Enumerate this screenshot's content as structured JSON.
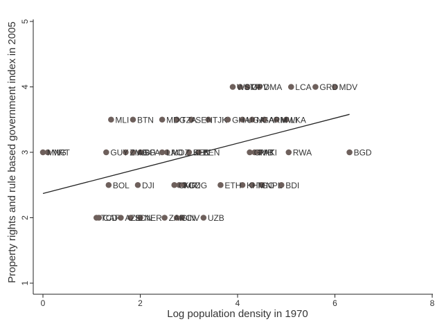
{
  "chart_data": {
    "type": "scatter",
    "xlabel": "Log population density in 1970",
    "ylabel": "Property rights and rule based government index in 2005",
    "xlim": [
      0,
      8
    ],
    "ylim": [
      1,
      5
    ],
    "xticks": [
      0,
      2,
      4,
      6,
      8
    ],
    "yticks": [
      1,
      2,
      3,
      4,
      5
    ],
    "marker_color": "#6e605c",
    "fit_line": {
      "x": [
        0,
        6.3
      ],
      "y": [
        2.37,
        3.58
      ]
    },
    "points": [
      {
        "label": "WSM",
        "x": 3.9,
        "y": 4.0
      },
      {
        "label": "STP",
        "x": 4.05,
        "y": 4.0
      },
      {
        "label": "CPV",
        "x": 4.2,
        "y": 4.0
      },
      {
        "label": "DMA",
        "x": 4.45,
        "y": 4.0
      },
      {
        "label": "LCA",
        "x": 5.1,
        "y": 4.0
      },
      {
        "label": "GRD",
        "x": 5.6,
        "y": 4.0
      },
      {
        "label": "MDV",
        "x": 6.0,
        "y": 4.0
      },
      {
        "label": "MLI",
        "x": 1.4,
        "y": 3.5
      },
      {
        "label": "BTN",
        "x": 1.85,
        "y": 3.5
      },
      {
        "label": "MDG",
        "x": 2.45,
        "y": 3.5
      },
      {
        "label": "TZA",
        "x": 2.75,
        "y": 3.5
      },
      {
        "label": "SEN",
        "x": 3.05,
        "y": 3.5
      },
      {
        "label": "TJK",
        "x": 3.4,
        "y": 3.5
      },
      {
        "label": "GHA",
        "x": 3.8,
        "y": 3.5
      },
      {
        "label": "UGA",
        "x": 4.1,
        "y": 3.5
      },
      {
        "label": "NGA",
        "x": 4.3,
        "y": 3.5
      },
      {
        "label": "ARM",
        "x": 4.55,
        "y": 3.5
      },
      {
        "label": "MWI",
        "x": 4.8,
        "y": 3.5
      },
      {
        "label": "LKA",
        "x": 5.0,
        "y": 3.5
      },
      {
        "label": "MNG",
        "x": 0.0,
        "y": 3.0
      },
      {
        "label": "MRT",
        "x": 0.1,
        "y": 3.0
      },
      {
        "label": "GUY",
        "x": 1.3,
        "y": 3.0
      },
      {
        "label": "ZMB",
        "x": 1.7,
        "y": 3.0
      },
      {
        "label": "AGO",
        "x": 1.85,
        "y": 3.0
      },
      {
        "label": "BFA",
        "x": 2.0,
        "y": 3.0
      },
      {
        "label": "LAO",
        "x": 2.45,
        "y": 3.0
      },
      {
        "label": "MOZ",
        "x": 2.55,
        "y": 3.0
      },
      {
        "label": "KEN",
        "x": 3.0,
        "y": 3.0
      },
      {
        "label": "BEN",
        "x": 3.2,
        "y": 3.0
      },
      {
        "label": "GMB",
        "x": 4.25,
        "y": 3.0
      },
      {
        "label": "PAK",
        "x": 4.35,
        "y": 3.0
      },
      {
        "label": "HTI",
        "x": 4.45,
        "y": 3.0
      },
      {
        "label": "RWA",
        "x": 5.05,
        "y": 3.0
      },
      {
        "label": "BGD",
        "x": 6.3,
        "y": 3.0
      },
      {
        "label": "BOL",
        "x": 1.35,
        "y": 2.5
      },
      {
        "label": "DJI",
        "x": 1.95,
        "y": 2.5
      },
      {
        "label": "CMR",
        "x": 2.7,
        "y": 2.5
      },
      {
        "label": "KGZ",
        "x": 2.8,
        "y": 2.5
      },
      {
        "label": "COG",
        "x": 2.9,
        "y": 2.5
      },
      {
        "label": "SLE",
        "x": 3.0,
        "y": 3.0
      },
      {
        "label": "ETH",
        "x": 3.65,
        "y": 2.5
      },
      {
        "label": "KHM",
        "x": 4.1,
        "y": 2.5
      },
      {
        "label": "TGO",
        "x": 4.3,
        "y": 2.5
      },
      {
        "label": "NPL",
        "x": 4.5,
        "y": 2.5
      },
      {
        "label": "BDI",
        "x": 4.9,
        "y": 2.5
      },
      {
        "label": "TCD",
        "x": 1.1,
        "y": 2.0
      },
      {
        "label": "CAF",
        "x": 1.15,
        "y": 2.0
      },
      {
        "label": "AZE",
        "x": 1.6,
        "y": 2.0
      },
      {
        "label": "SDN",
        "x": 1.8,
        "y": 2.0
      },
      {
        "label": "NER",
        "x": 2.0,
        "y": 2.0
      },
      {
        "label": "ZAR",
        "x": 2.5,
        "y": 2.0
      },
      {
        "label": "GIN",
        "x": 2.75,
        "y": 2.0
      },
      {
        "label": "CIV",
        "x": 2.85,
        "y": 2.0
      },
      {
        "label": "UZB",
        "x": 3.3,
        "y": 2.0
      }
    ]
  }
}
